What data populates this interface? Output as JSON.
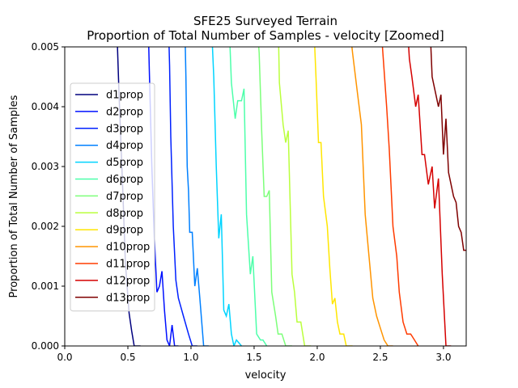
{
  "chart_data": {
    "type": "line",
    "title": "SFE25 Surveyed Terrain",
    "subtitle": "Proportion of Total Number of Samples - velocity [Zoomed]",
    "xlabel": "velocity",
    "ylabel": "Proportion of Total Number of Samples",
    "xlim": [
      0.0,
      3.18
    ],
    "ylim": [
      0.0,
      0.005
    ],
    "xticks": [
      "0.0",
      "0.5",
      "1.0",
      "1.5",
      "2.0",
      "2.5",
      "3.0"
    ],
    "yticks": [
      "0.000",
      "0.001",
      "0.002",
      "0.003",
      "0.004",
      "0.005"
    ],
    "grid": false,
    "legend_position": "center-left",
    "series": [
      {
        "name": "d1prop",
        "color": "#00007f",
        "points": [
          [
            0.41,
            0.0055
          ],
          [
            0.43,
            0.0042
          ],
          [
            0.46,
            0.0026
          ],
          [
            0.48,
            0.0014
          ],
          [
            0.51,
            0.00055
          ],
          [
            0.53,
            0.00025
          ],
          [
            0.55,
            0.0
          ],
          [
            0.6,
            0.0
          ]
        ]
      },
      {
        "name": "d2prop",
        "color": "#0010ff",
        "points": [
          [
            0.66,
            0.0055
          ],
          [
            0.67,
            0.0046
          ],
          [
            0.69,
            0.003
          ],
          [
            0.71,
            0.0018
          ],
          [
            0.73,
            0.0009
          ],
          [
            0.75,
            0.001
          ],
          [
            0.77,
            0.00125
          ],
          [
            0.79,
            0.0006
          ],
          [
            0.81,
            0.0001
          ],
          [
            0.83,
            0.0
          ],
          [
            0.85,
            0.00035
          ],
          [
            0.87,
            0.0
          ],
          [
            0.9,
            0.0
          ]
        ]
      },
      {
        "name": "d3prop",
        "color": "#0020ff",
        "points": [
          [
            0.82,
            0.0055
          ],
          [
            0.83,
            0.0047
          ],
          [
            0.84,
            0.0035
          ],
          [
            0.86,
            0.002
          ],
          [
            0.88,
            0.0011
          ],
          [
            0.9,
            0.0008
          ],
          [
            0.94,
            0.0005
          ],
          [
            0.98,
            0.0002
          ],
          [
            1.01,
            0.0
          ],
          [
            1.05,
            0.0
          ]
        ]
      },
      {
        "name": "d4prop",
        "color": "#0080ff",
        "points": [
          [
            0.95,
            0.0055
          ],
          [
            0.96,
            0.0045
          ],
          [
            0.97,
            0.003
          ],
          [
            0.98,
            0.0026
          ],
          [
            0.99,
            0.0019
          ],
          [
            1.01,
            0.0019
          ],
          [
            1.03,
            0.001
          ],
          [
            1.05,
            0.0013
          ],
          [
            1.07,
            0.0008
          ],
          [
            1.1,
            0.0
          ],
          [
            1.14,
            0.0
          ]
        ]
      },
      {
        "name": "d5prop",
        "color": "#00d4ff",
        "points": [
          [
            1.16,
            0.0055
          ],
          [
            1.18,
            0.0045
          ],
          [
            1.2,
            0.003
          ],
          [
            1.22,
            0.0018
          ],
          [
            1.24,
            0.0022
          ],
          [
            1.26,
            0.0006
          ],
          [
            1.28,
            0.0005
          ],
          [
            1.3,
            0.0007
          ],
          [
            1.32,
            0.0002
          ],
          [
            1.34,
            0.0
          ],
          [
            1.36,
            0.0001
          ],
          [
            1.4,
            0.0
          ]
        ]
      },
      {
        "name": "d6prop",
        "color": "#4dffaa",
        "points": [
          [
            1.3,
            0.0055
          ],
          [
            1.32,
            0.0044
          ],
          [
            1.35,
            0.0038
          ],
          [
            1.37,
            0.0041
          ],
          [
            1.4,
            0.0041
          ],
          [
            1.42,
            0.0043
          ],
          [
            1.44,
            0.0022
          ],
          [
            1.47,
            0.0012
          ],
          [
            1.49,
            0.0015
          ],
          [
            1.52,
            0.0002
          ],
          [
            1.55,
            0.0001
          ],
          [
            1.57,
            0.0001
          ],
          [
            1.6,
            0.0
          ]
        ]
      },
      {
        "name": "d7prop",
        "color": "#7dff7a",
        "points": [
          [
            1.52,
            0.0055
          ],
          [
            1.54,
            0.0049
          ],
          [
            1.56,
            0.0036
          ],
          [
            1.58,
            0.0025
          ],
          [
            1.6,
            0.0025
          ],
          [
            1.62,
            0.0026
          ],
          [
            1.64,
            0.0009
          ],
          [
            1.67,
            0.0005
          ],
          [
            1.69,
            0.0002
          ],
          [
            1.72,
            0.0002
          ],
          [
            1.75,
            0.0
          ],
          [
            1.8,
            0.0
          ]
        ]
      },
      {
        "name": "d8prop",
        "color": "#baff3d",
        "points": [
          [
            1.69,
            0.0055
          ],
          [
            1.7,
            0.0044
          ],
          [
            1.73,
            0.0037
          ],
          [
            1.75,
            0.0034
          ],
          [
            1.77,
            0.0036
          ],
          [
            1.8,
            0.0012
          ],
          [
            1.82,
            0.0009
          ],
          [
            1.84,
            0.0004
          ],
          [
            1.87,
            0.0004
          ],
          [
            1.9,
            0.0
          ],
          [
            1.95,
            0.0
          ]
        ]
      },
      {
        "name": "d9prop",
        "color": "#ffe600",
        "points": [
          [
            1.97,
            0.0055
          ],
          [
            1.99,
            0.0045
          ],
          [
            2.01,
            0.0034
          ],
          [
            2.03,
            0.0034
          ],
          [
            2.05,
            0.0025
          ],
          [
            2.08,
            0.002
          ],
          [
            2.1,
            0.0013
          ],
          [
            2.12,
            0.0007
          ],
          [
            2.14,
            0.0008
          ],
          [
            2.16,
            0.0004
          ],
          [
            2.18,
            0.0002
          ],
          [
            2.21,
            0.0002
          ],
          [
            2.23,
            0.0
          ],
          [
            2.28,
            0.0
          ]
        ]
      },
      {
        "name": "d10prop",
        "color": "#ff9400",
        "points": [
          [
            2.25,
            0.0055
          ],
          [
            2.28,
            0.0049
          ],
          [
            2.32,
            0.0042
          ],
          [
            2.35,
            0.0037
          ],
          [
            2.38,
            0.0022
          ],
          [
            2.41,
            0.0015
          ],
          [
            2.44,
            0.0008
          ],
          [
            2.47,
            0.0005
          ],
          [
            2.5,
            0.0003
          ],
          [
            2.53,
            0.0001
          ],
          [
            2.56,
            0.0
          ],
          [
            2.6,
            0.0
          ]
        ]
      },
      {
        "name": "d11prop",
        "color": "#ff3b00",
        "points": [
          [
            2.5,
            0.0055
          ],
          [
            2.53,
            0.0046
          ],
          [
            2.55,
            0.004
          ],
          [
            2.57,
            0.0033
          ],
          [
            2.6,
            0.002
          ],
          [
            2.63,
            0.0015
          ],
          [
            2.65,
            0.0009
          ],
          [
            2.68,
            0.0004
          ],
          [
            2.71,
            0.0002
          ],
          [
            2.74,
            0.0002
          ],
          [
            2.77,
            0.0001
          ],
          [
            2.8,
            0.0
          ]
        ]
      },
      {
        "name": "d12prop",
        "color": "#d50000",
        "points": [
          [
            2.71,
            0.0055
          ],
          [
            2.73,
            0.0048
          ],
          [
            2.75,
            0.0045
          ],
          [
            2.78,
            0.004
          ],
          [
            2.8,
            0.0042
          ],
          [
            2.83,
            0.0032
          ],
          [
            2.85,
            0.0032
          ],
          [
            2.88,
            0.0027
          ],
          [
            2.91,
            0.003
          ],
          [
            2.93,
            0.0023
          ],
          [
            2.96,
            0.0028
          ],
          [
            2.99,
            0.0012
          ],
          [
            3.02,
            0.0
          ],
          [
            3.06,
            0.0
          ]
        ]
      },
      {
        "name": "d13prop",
        "color": "#7f0000",
        "points": [
          [
            2.89,
            0.0055
          ],
          [
            2.91,
            0.0045
          ],
          [
            2.94,
            0.0042
          ],
          [
            2.96,
            0.004
          ],
          [
            2.98,
            0.0042
          ],
          [
            3.0,
            0.0032
          ],
          [
            3.02,
            0.0038
          ],
          [
            3.04,
            0.0029
          ],
          [
            3.06,
            0.0027
          ],
          [
            3.08,
            0.0025
          ],
          [
            3.1,
            0.0024
          ],
          [
            3.12,
            0.002
          ],
          [
            3.14,
            0.0019
          ],
          [
            3.16,
            0.0016
          ],
          [
            3.18,
            0.0016
          ]
        ]
      }
    ]
  }
}
